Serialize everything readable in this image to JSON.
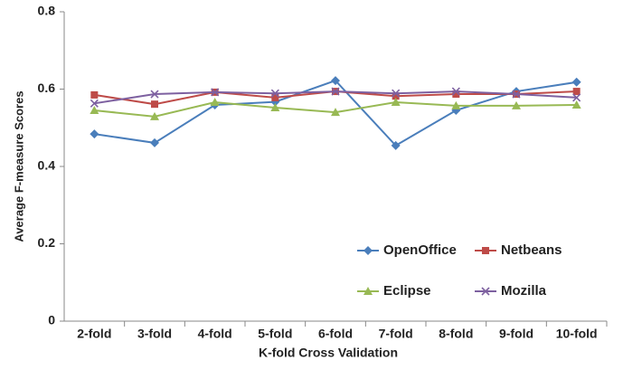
{
  "chart_data": {
    "type": "line",
    "x_label": "K-fold Cross Validation",
    "y_label": "Average F-measure Scores",
    "categories": [
      "2-fold",
      "3-fold",
      "4-fold",
      "5-fold",
      "6-fold",
      "7-fold",
      "8-fold",
      "9-fold",
      "10-fold"
    ],
    "series": [
      {
        "name": "OpenOffice",
        "color": "#4a7ebb",
        "marker": "diamond",
        "values": [
          0.484,
          0.461,
          0.559,
          0.567,
          0.622,
          0.454,
          0.545,
          0.594,
          0.618
        ]
      },
      {
        "name": "Netbeans",
        "color": "#be4b48",
        "marker": "square",
        "values": [
          0.585,
          0.561,
          0.592,
          0.578,
          0.594,
          0.582,
          0.587,
          0.587,
          0.594
        ]
      },
      {
        "name": "Eclipse",
        "color": "#98b954",
        "marker": "triangle",
        "values": [
          0.545,
          0.529,
          0.566,
          0.552,
          0.54,
          0.566,
          0.557,
          0.557,
          0.559
        ]
      },
      {
        "name": "Mozilla",
        "color": "#7d60a0",
        "marker": "x",
        "values": [
          0.563,
          0.587,
          0.592,
          0.589,
          0.594,
          0.589,
          0.594,
          0.587,
          0.578
        ]
      }
    ],
    "ylim": [
      0,
      0.8
    ],
    "yticks": [
      0,
      0.2,
      0.4,
      0.6,
      0.8
    ],
    "grid": false,
    "legend": "lower right"
  }
}
